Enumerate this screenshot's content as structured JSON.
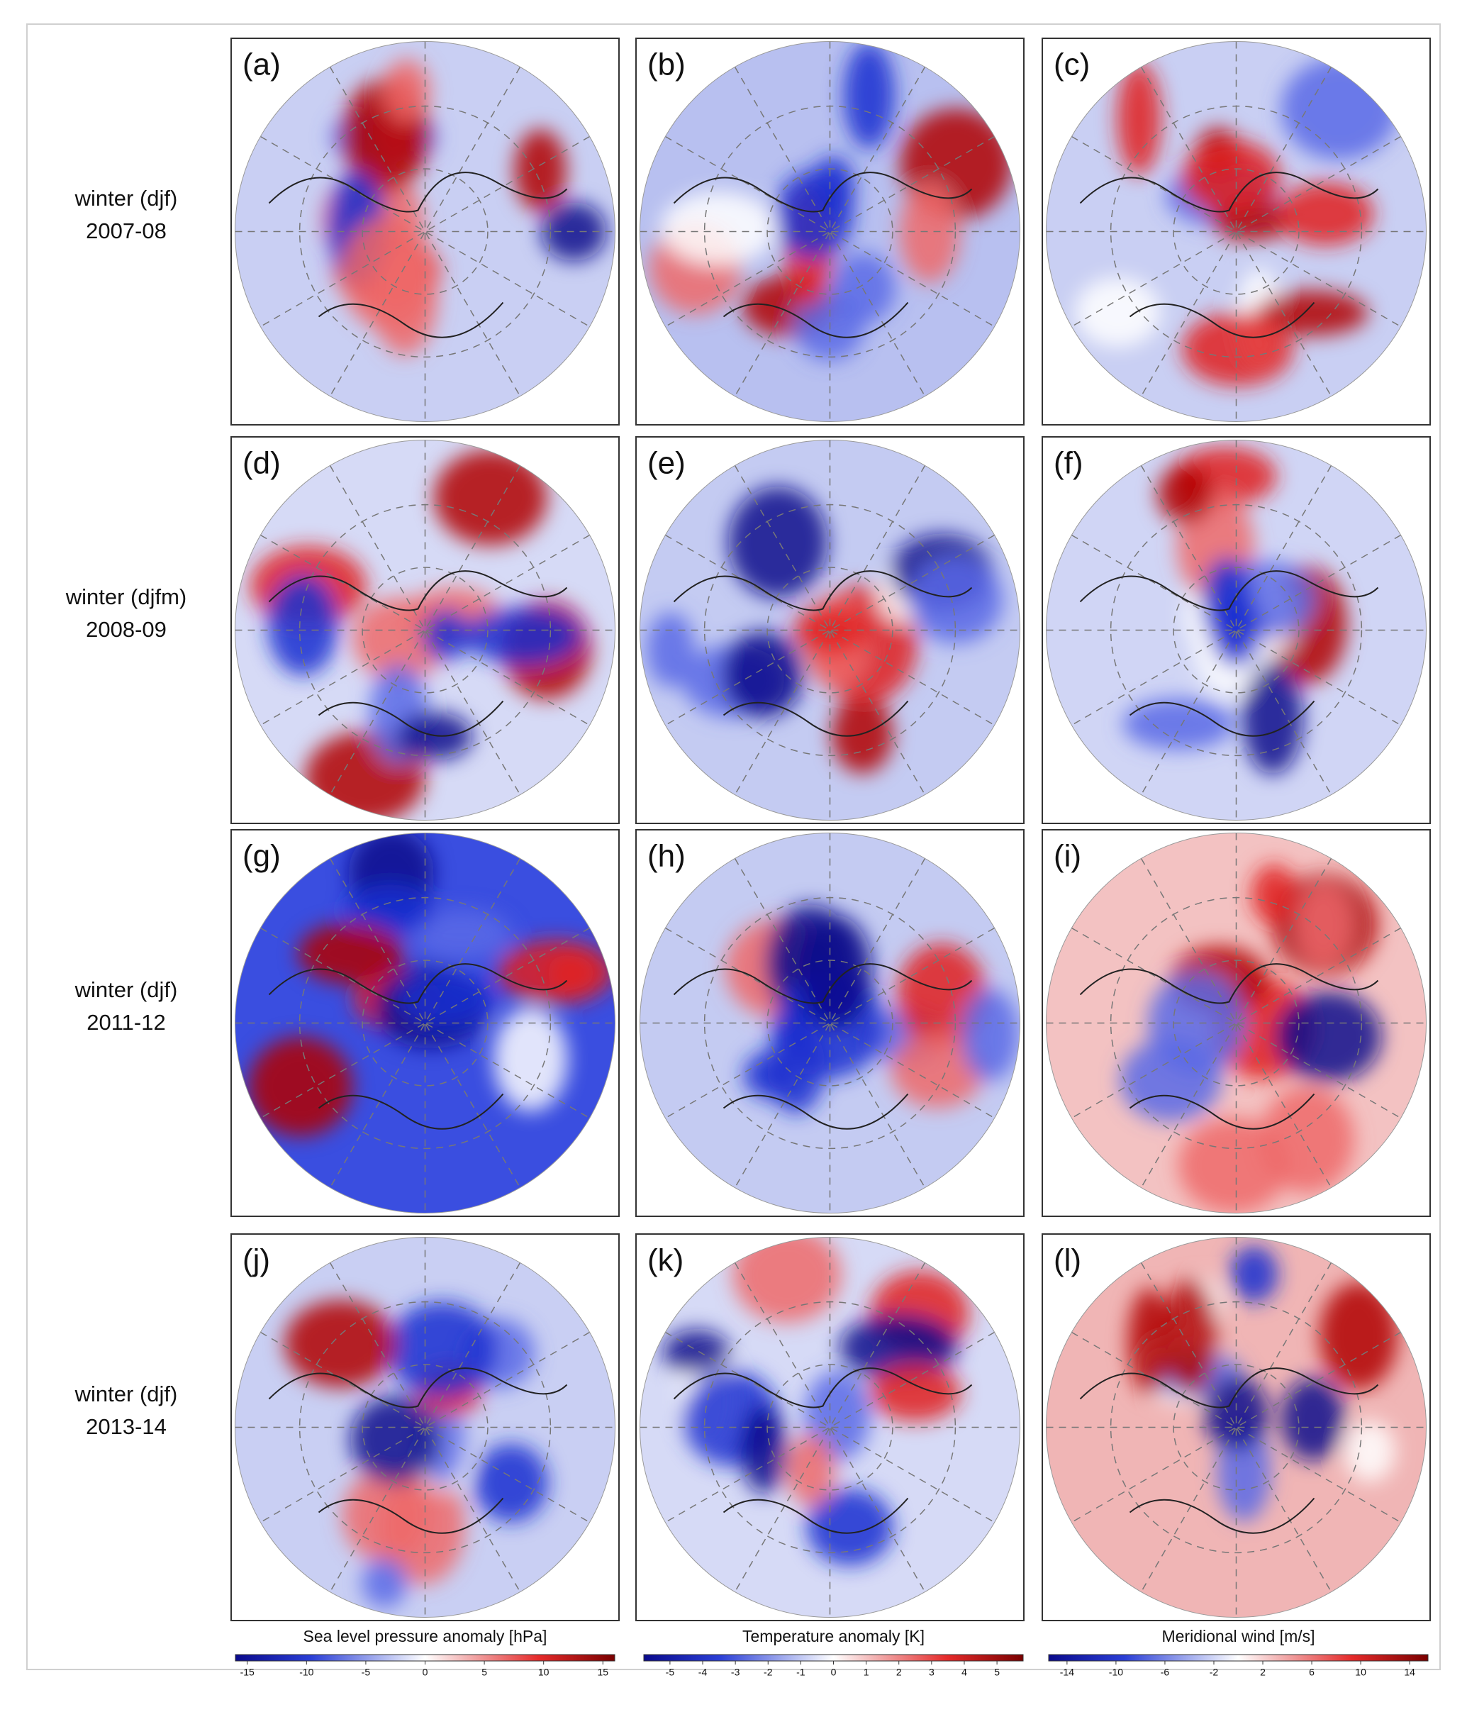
{
  "panels": [
    {
      "label": "(a)"
    },
    {
      "label": "(b)"
    },
    {
      "label": "(c)"
    },
    {
      "label": "(d)"
    },
    {
      "label": "(e)"
    },
    {
      "label": "(f)"
    },
    {
      "label": "(g)"
    },
    {
      "label": "(h)"
    },
    {
      "label": "(i)"
    },
    {
      "label": "(j)"
    },
    {
      "label": "(k)"
    },
    {
      "label": "(l)"
    }
  ],
  "rows": [
    {
      "season": "winter (djf)",
      "years": "2007-08"
    },
    {
      "season": "winter (djfm)",
      "years": "2008-09"
    },
    {
      "season": "winter (djf)",
      "years": "2011-12"
    },
    {
      "season": "winter (djf)",
      "years": "2013-14"
    }
  ],
  "colorbars": [
    {
      "title": "Sea level pressure anomaly [hPa]",
      "lim": [
        -16,
        16
      ],
      "ticks": [
        -15,
        -10,
        -5,
        0,
        5,
        10,
        15
      ]
    },
    {
      "title": "Temperature anomaly [K]",
      "lim": [
        -5.8,
        5.8
      ],
      "ticks": [
        -5,
        -4,
        -3,
        -2,
        -1,
        0,
        1,
        2,
        3,
        4,
        5
      ]
    },
    {
      "title": "Meridional wind [m/s]",
      "lim": [
        -15.5,
        15.5
      ],
      "ticks": [
        -14,
        -10,
        -6,
        -2,
        2,
        6,
        10,
        14
      ]
    }
  ]
}
